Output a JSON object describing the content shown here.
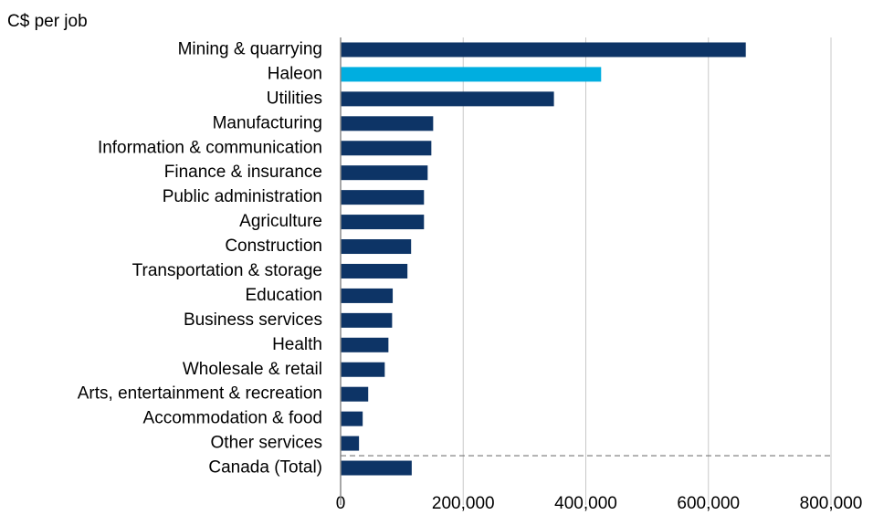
{
  "chart_data": {
    "type": "barh",
    "title": "C$ per job",
    "categories": [
      "Mining & quarrying",
      "Haleon",
      "Utilities",
      "Manufacturing",
      "Information & communication",
      "Finance & insurance",
      "Public administration",
      "Agriculture",
      "Construction",
      "Transportation & storage",
      "Education",
      "Business services",
      "Health",
      "Wholesale & retail",
      "Arts, entertainment & recreation",
      "Accommodation & food",
      "Other services",
      "Canada (Total)"
    ],
    "values": [
      661000,
      425000,
      348000,
      151000,
      148000,
      142000,
      136000,
      136000,
      115000,
      109000,
      85000,
      84000,
      78000,
      72000,
      45000,
      36000,
      30000,
      116000
    ],
    "colors": [
      "#0d3466",
      "#00aee0",
      "#0d3466",
      "#0d3466",
      "#0d3466",
      "#0d3466",
      "#0d3466",
      "#0d3466",
      "#0d3466",
      "#0d3466",
      "#0d3466",
      "#0d3466",
      "#0d3466",
      "#0d3466",
      "#0d3466",
      "#0d3466",
      "#0d3466",
      "#0d3466"
    ],
    "xlim": [
      0,
      800000
    ],
    "xticks": [
      0,
      {
        "value": 200000,
        "label": "200,000"
      },
      {
        "value": 400000,
        "label": "400,000"
      },
      {
        "value": 600000,
        "label": "600,000"
      },
      {
        "value": 800000,
        "label": "800,000"
      }
    ],
    "grid": true
  }
}
